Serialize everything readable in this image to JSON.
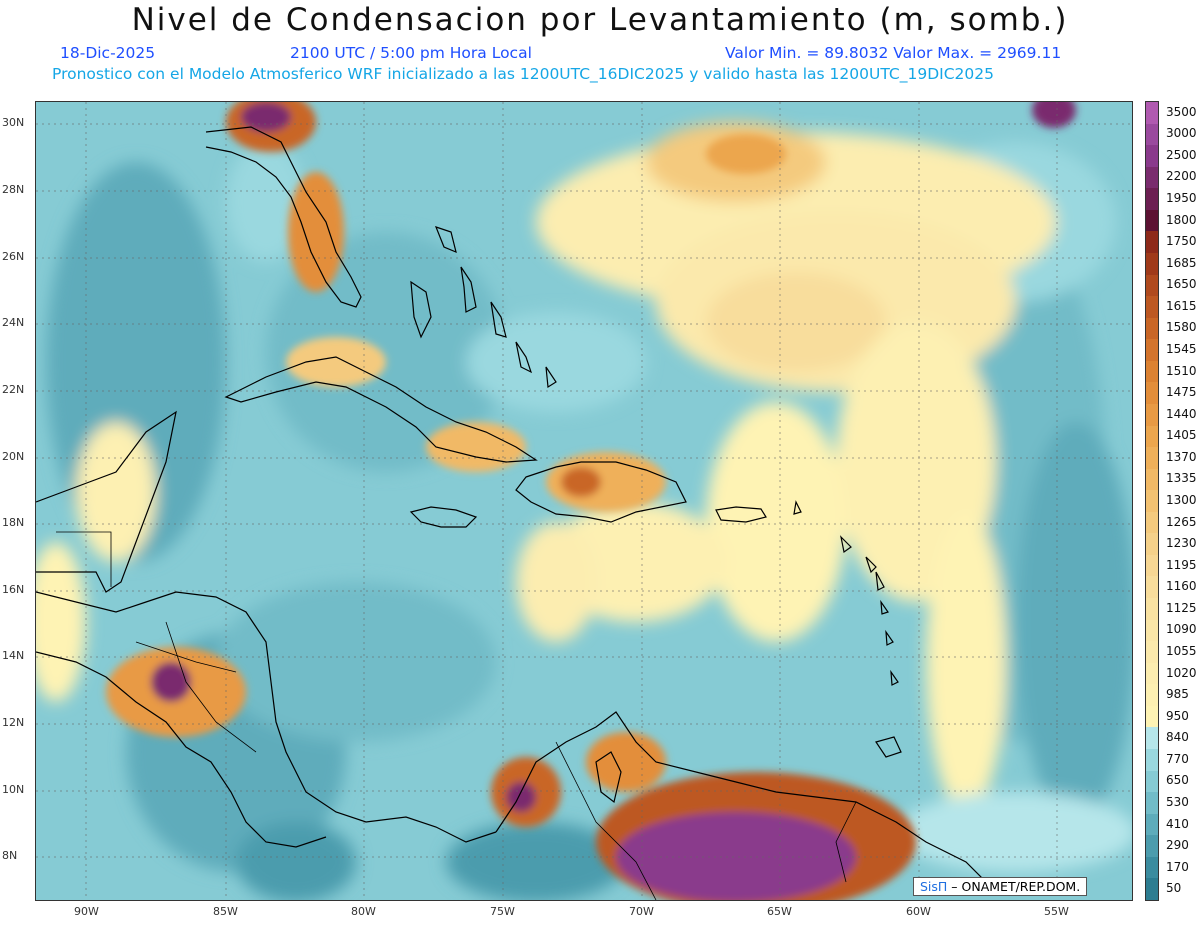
{
  "title": "Nivel de Condensacion por Levantamiento (m, somb.)",
  "subtitle": {
    "date": "18-Dic-2025",
    "time": "2100 UTC / 5:00 pm Hora Local",
    "minmax": "Valor Min. = 89.8032  Valor Max. = 2969.11",
    "model": "Pronostico con el Modelo Atmosferico WRF inicializado a las 1200UTC_16DIC2025 y valido hasta las  1200UTC_19DIC2025"
  },
  "axes": {
    "lat_labels": [
      "30N",
      "28N",
      "26N",
      "24N",
      "22N",
      "20N",
      "18N",
      "16N",
      "14N",
      "12N",
      "10N",
      "8N"
    ],
    "lon_labels": [
      "90W",
      "85W",
      "80W",
      "75W",
      "70W",
      "65W",
      "60W",
      "55W"
    ]
  },
  "legend": [
    {
      "label": "3500",
      "color": "#b05ab0"
    },
    {
      "label": "3000",
      "color": "#9a4a9e"
    },
    {
      "label": "2500",
      "color": "#8a3a8c"
    },
    {
      "label": "2200",
      "color": "#7a2c6e"
    },
    {
      "label": "1950",
      "color": "#6c1f52"
    },
    {
      "label": "1800",
      "color": "#5c1232"
    },
    {
      "label": "1750",
      "color": "#8e2a1a"
    },
    {
      "label": "1685",
      "color": "#a03a1a"
    },
    {
      "label": "1650",
      "color": "#b04a1e"
    },
    {
      "label": "1615",
      "color": "#bd5822"
    },
    {
      "label": "1580",
      "color": "#c96626"
    },
    {
      "label": "1545",
      "color": "#d4742c"
    },
    {
      "label": "1510",
      "color": "#dc8232"
    },
    {
      "label": "1475",
      "color": "#e38e3a"
    },
    {
      "label": "1440",
      "color": "#e89a44"
    },
    {
      "label": "1405",
      "color": "#eca64e"
    },
    {
      "label": "1370",
      "color": "#efb05a"
    },
    {
      "label": "1335",
      "color": "#f1b966"
    },
    {
      "label": "1300",
      "color": "#f3c272"
    },
    {
      "label": "1265",
      "color": "#f4ca7e"
    },
    {
      "label": "1230",
      "color": "#f5d18a"
    },
    {
      "label": "1195",
      "color": "#f7d794"
    },
    {
      "label": "1160",
      "color": "#f8dd9c"
    },
    {
      "label": "1125",
      "color": "#f9e2a2"
    },
    {
      "label": "1090",
      "color": "#fae6a8"
    },
    {
      "label": "1055",
      "color": "#fbe9ac"
    },
    {
      "label": "1020",
      "color": "#fcedb0"
    },
    {
      "label": "985",
      "color": "#fdf0b2"
    },
    {
      "label": "950",
      "color": "#fef3b4"
    },
    {
      "label": "840",
      "color": "#b6e6ea"
    },
    {
      "label": "770",
      "color": "#9ad8df"
    },
    {
      "label": "650",
      "color": "#86cbd4"
    },
    {
      "label": "530",
      "color": "#72bcc8"
    },
    {
      "label": "410",
      "color": "#5eacbb"
    },
    {
      "label": "290",
      "color": "#4c9cad"
    },
    {
      "label": "170",
      "color": "#3b8c9f"
    },
    {
      "label": "50",
      "color": "#2d7d91"
    }
  ],
  "credit": {
    "brand": "SisΠ",
    "org": " – ONAMET/REP.DOM."
  }
}
